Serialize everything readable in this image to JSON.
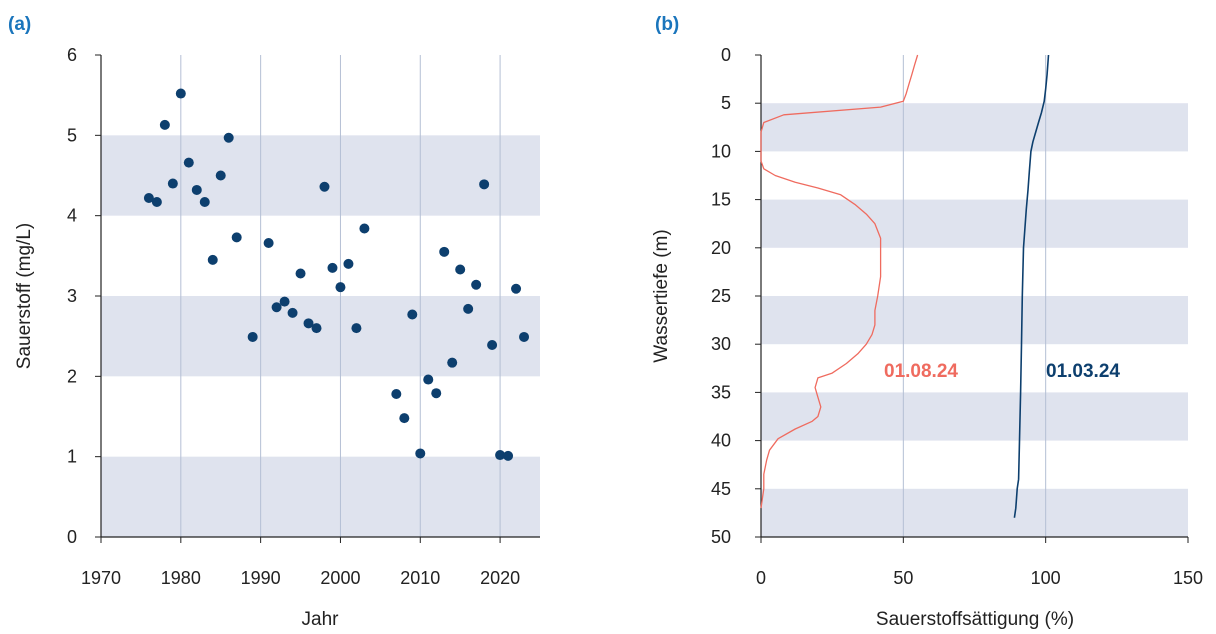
{
  "chart_data": [
    {
      "type": "scatter",
      "panel_label": "(a)",
      "xlabel": "Jahr",
      "ylabel": "Sauerstoff (mg/L)",
      "xlim": [
        1970,
        2025
      ],
      "ylim": [
        0,
        6
      ],
      "xticks": [
        1970,
        1980,
        1990,
        2000,
        2010,
        2020
      ],
      "yticks": [
        0,
        1,
        2,
        3,
        4,
        5,
        6
      ],
      "shaded_bands_y": [
        [
          0,
          1
        ],
        [
          2,
          3
        ],
        [
          4,
          5
        ]
      ],
      "vertical_grid_x": [
        1980,
        1990,
        2000,
        2010,
        2020
      ],
      "marker_color": "#0d3f6e",
      "band_color": "#dfe3ee",
      "grid_color": "#b4bfd4",
      "x": [
        1976,
        1977,
        1978,
        1979,
        1980,
        1981,
        1982,
        1983,
        1984,
        1985,
        1986,
        1987,
        1989,
        1991,
        1992,
        1993,
        1994,
        1995,
        1996,
        1997,
        1998,
        1999,
        2000,
        2001,
        2002,
        2003,
        2007,
        2008,
        2009,
        2010,
        2011,
        2012,
        2013,
        2014,
        2015,
        2016,
        2017,
        2018,
        2019,
        2020,
        2021,
        2022,
        2023
      ],
      "y": [
        4.22,
        4.17,
        5.13,
        4.4,
        5.52,
        4.66,
        4.32,
        4.17,
        3.45,
        4.5,
        4.97,
        3.73,
        2.49,
        3.66,
        2.86,
        2.93,
        2.79,
        3.28,
        2.66,
        2.6,
        4.36,
        3.35,
        3.11,
        3.4,
        2.6,
        3.84,
        1.78,
        1.48,
        2.77,
        1.04,
        1.96,
        1.79,
        3.55,
        2.17,
        3.33,
        2.84,
        3.14,
        4.39,
        2.39,
        1.02,
        1.01,
        3.09,
        2.49
      ]
    },
    {
      "type": "line",
      "panel_label": "(b)",
      "xlabel": "Sauerstoffsättigung (%)",
      "ylabel": "Wassertiefe (m)",
      "xlim": [
        0,
        150
      ],
      "ylim": [
        0,
        50
      ],
      "y_inverted": true,
      "xticks": [
        0,
        50,
        100,
        150
      ],
      "yticks": [
        0,
        5,
        10,
        15,
        20,
        25,
        30,
        35,
        40,
        45,
        50
      ],
      "shaded_bands_y": [
        [
          5,
          10
        ],
        [
          15,
          20
        ],
        [
          25,
          30
        ],
        [
          35,
          40
        ],
        [
          45,
          50
        ]
      ],
      "vertical_grid_x": [
        50,
        100
      ],
      "band_color": "#dfe3ee",
      "grid_color": "#b4bfd4",
      "series": [
        {
          "name": "01.08.24",
          "color": "#ef6b5f",
          "x": [
            55,
            54,
            53,
            52,
            51,
            50,
            42,
            8,
            1,
            0,
            0,
            0,
            1,
            5,
            12,
            20,
            28,
            33,
            37,
            40,
            42,
            42,
            42,
            41,
            40,
            40,
            39,
            37,
            34,
            30,
            25,
            20,
            19,
            20,
            21,
            20,
            18,
            12,
            6,
            3,
            2,
            1,
            1,
            0.5,
            0
          ],
          "y": [
            0,
            1,
            2,
            3,
            4,
            4.8,
            5.4,
            6.2,
            7,
            8,
            10,
            11,
            11.8,
            12.5,
            13.2,
            13.8,
            14.5,
            15.5,
            16.5,
            17.5,
            19,
            21,
            23,
            25,
            26.5,
            28,
            29,
            30,
            31,
            32,
            33,
            33.5,
            34.5,
            35.5,
            36.5,
            37.5,
            38,
            38.8,
            39.8,
            41,
            42,
            43.5,
            45,
            46,
            47
          ]
        },
        {
          "name": "01.03.24",
          "color": "#0d3f6e",
          "x": [
            101,
            100.5,
            100,
            99.5,
            98.5,
            97.5,
            96.5,
            95.5,
            94.8,
            94.3,
            93.8,
            93.2,
            92.7,
            92.2,
            91.8,
            91.5,
            91.2,
            90.8,
            90.5,
            90,
            89.5,
            89
          ],
          "y": [
            0,
            2,
            3.5,
            4.8,
            6,
            7,
            8,
            9,
            10,
            12,
            14,
            16,
            18,
            20,
            25,
            30,
            35,
            40,
            44,
            45,
            47,
            48
          ]
        }
      ]
    }
  ]
}
